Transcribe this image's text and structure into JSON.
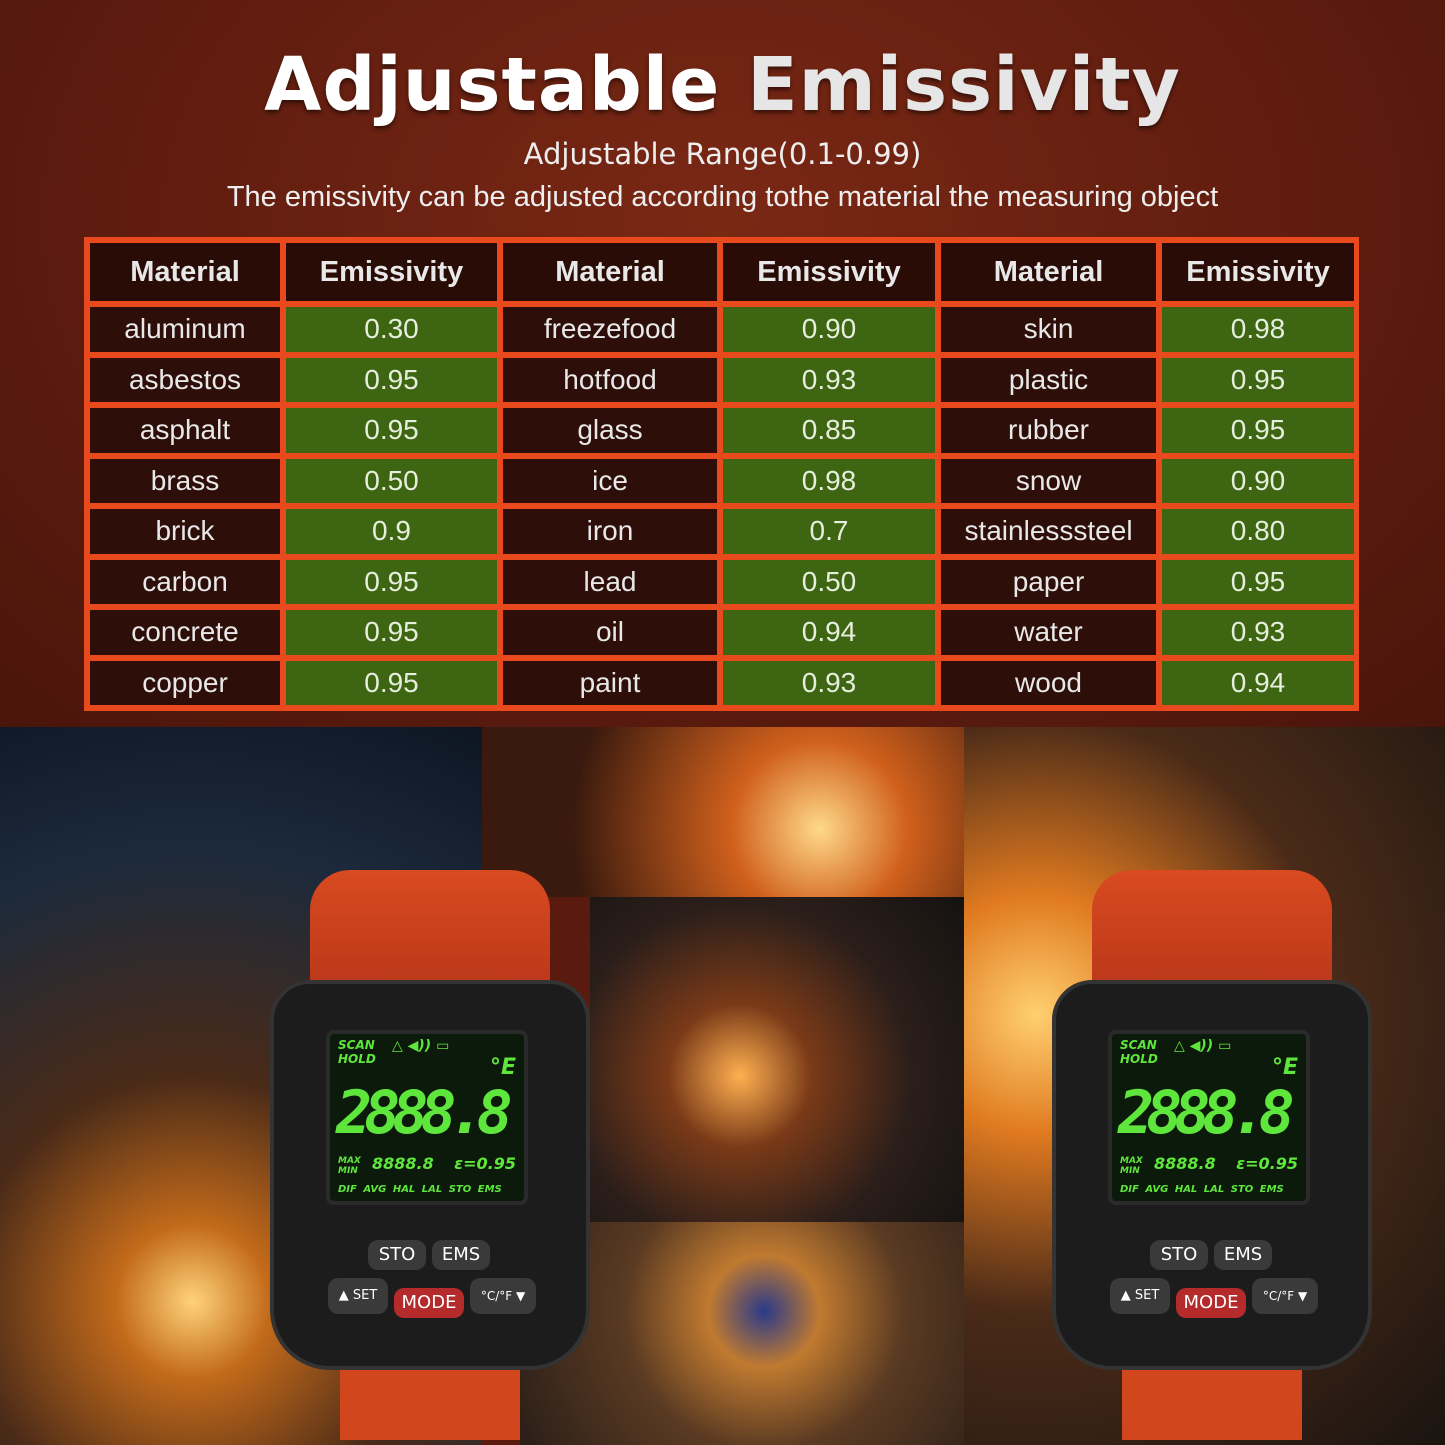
{
  "header": {
    "title_a": "Adjustable",
    "title_b": "Emissivity",
    "subtitle": "Adjustable Range(0.1-0.99)",
    "description": "The emissivity can be adjusted according tothe material the measuring object"
  },
  "table": {
    "headers": [
      "Material",
      "Emissivity",
      "Material",
      "Emissivity",
      "Material",
      "Emissivity"
    ],
    "rows": [
      [
        "aluminum",
        "0.30",
        "freezefood",
        "0.90",
        "skin",
        "0.98"
      ],
      [
        "asbestos",
        "0.95",
        "hotfood",
        "0.93",
        "plastic",
        "0.95"
      ],
      [
        "asphalt",
        "0.95",
        "glass",
        "0.85",
        "rubber",
        "0.95"
      ],
      [
        "brass",
        "0.50",
        "ice",
        "0.98",
        "snow",
        "0.90"
      ],
      [
        "brick",
        "0.9",
        "iron",
        "0.7",
        "stainlesssteel",
        "0.80"
      ],
      [
        "carbon",
        "0.95",
        "lead",
        "0.50",
        "paper",
        "0.95"
      ],
      [
        "concrete",
        "0.95",
        "oil",
        "0.94",
        "water",
        "0.93"
      ],
      [
        "copper",
        "0.95",
        "paint",
        "0.93",
        "wood",
        "0.94"
      ]
    ]
  },
  "device": {
    "scan": "SCAN",
    "hold": "HOLD",
    "reading": "2888.8",
    "unit": "°E",
    "max": "MAX",
    "min": "MIN",
    "secondary": "8888.8",
    "emissivity": "ε=0.95",
    "modes": "DIF AVG HAL LAL STO EMS",
    "buttons": {
      "sto": "STO",
      "ems": "EMS",
      "set": "▲ SET",
      "mode": "MODE",
      "unit": "°C/°F ▼"
    }
  },
  "colors": {
    "border": "#e84a1e",
    "cell": "#2e0e08",
    "green": "#3e6511",
    "lcd": "#5fe63c"
  }
}
